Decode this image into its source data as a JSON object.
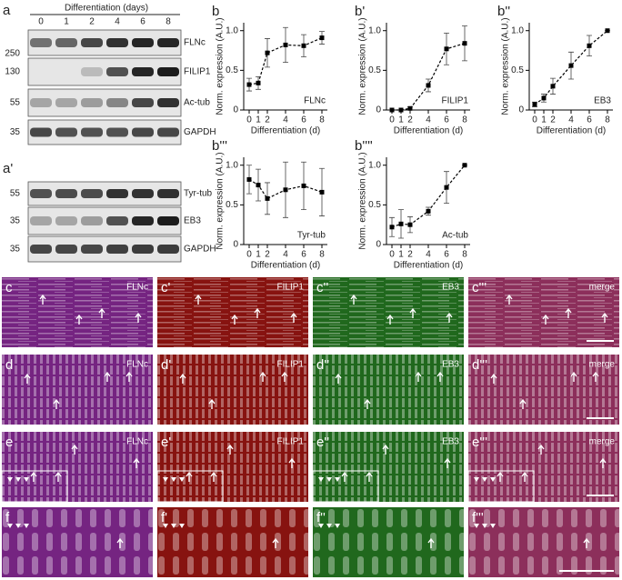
{
  "blots": [
    {
      "label": "a",
      "title": "Differentiation (days)",
      "lanes": [
        "0",
        "1",
        "2",
        "4",
        "6",
        "8"
      ],
      "rows": [
        {
          "marker": "250",
          "name": "FLNc"
        },
        {
          "marker": "130",
          "name": "FILIP1"
        },
        {
          "marker": "55",
          "name": "Ac-tub"
        },
        {
          "marker": "35",
          "name": "GAPDH"
        }
      ]
    },
    {
      "label": "a'",
      "rows": [
        {
          "marker": "55",
          "name": "Tyr-tub"
        },
        {
          "marker": "35",
          "name": "EB3"
        },
        {
          "marker": "35",
          "name": "GAPDH"
        }
      ]
    }
  ],
  "chart_data": [
    {
      "type": "line",
      "panel": "b",
      "annotation": "FLNc",
      "x": [
        0,
        1,
        2,
        4,
        6,
        8
      ],
      "values": [
        0.32,
        0.34,
        0.72,
        0.82,
        0.81,
        0.91
      ],
      "errors": [
        0.08,
        0.08,
        0.18,
        0.22,
        0.14,
        0.08
      ],
      "color": "#000000",
      "xlim": [
        -0.6,
        8.6
      ],
      "ylim": [
        0,
        1.1
      ],
      "xticks": [
        0,
        1,
        2,
        4,
        6,
        8
      ],
      "yticks": [
        0,
        0.5,
        {
          "value": 1,
          "label": "1.0"
        }
      ],
      "xlabel": "Differentiation (d)",
      "ylabel": "Norm. expression (A.U.)"
    },
    {
      "type": "line",
      "panel": "b'",
      "annotation": "FILIP1",
      "x": [
        0,
        1,
        2,
        4,
        6,
        8
      ],
      "values": [
        0,
        0,
        0.02,
        0.31,
        0.77,
        0.84
      ],
      "errors": [
        0,
        0,
        0.02,
        0.08,
        0.2,
        0.22
      ],
      "color": "#000000",
      "xlim": [
        -0.6,
        8.6
      ],
      "ylim": [
        0,
        1.1
      ],
      "xticks": [
        0,
        1,
        2,
        4,
        6,
        8
      ],
      "yticks": [
        0,
        0.5,
        {
          "value": 1,
          "label": "1.0"
        }
      ],
      "xlabel": "Differentiation (d)",
      "ylabel": "Norm. expression (A.U.)"
    },
    {
      "type": "line",
      "panel": "b''",
      "annotation": "EB3",
      "x": [
        0,
        1,
        2,
        4,
        6,
        8
      ],
      "values": [
        0.07,
        0.15,
        0.3,
        0.56,
        0.81,
        1.0
      ],
      "errors": [
        0.03,
        0.05,
        0.1,
        0.17,
        0.13,
        0
      ],
      "color": "#000000",
      "xlim": [
        -0.6,
        8.6
      ],
      "ylim": [
        0,
        1.1
      ],
      "xticks": [
        0,
        1,
        2,
        4,
        6,
        8
      ],
      "yticks": [
        0,
        0.5,
        {
          "value": 1,
          "label": "1.0"
        }
      ],
      "xlabel": "Differentiation (d)",
      "ylabel": "Norm. expression (A.U.)"
    },
    {
      "type": "line",
      "panel": "b'''",
      "annotation": "Tyr-tub",
      "x": [
        0,
        1,
        2,
        4,
        6,
        8
      ],
      "values": [
        0.82,
        0.75,
        0.58,
        0.69,
        0.74,
        0.66
      ],
      "errors": [
        0.18,
        0.2,
        0.2,
        0.35,
        0.3,
        0.3
      ],
      "color": "#000000",
      "xlim": [
        -0.6,
        8.6
      ],
      "ylim": [
        0,
        1.1
      ],
      "xticks": [
        0,
        1,
        2,
        4,
        6,
        8
      ],
      "yticks": [
        0,
        0.5,
        {
          "value": 1,
          "label": "1.0"
        }
      ],
      "xlabel": "Differentiation (d)",
      "ylabel": "Norm. expression (A.U.)"
    },
    {
      "type": "line",
      "panel": "b''''",
      "annotation": "Ac-tub",
      "x": [
        0,
        1,
        2,
        4,
        6,
        8
      ],
      "values": [
        0.22,
        0.26,
        0.25,
        0.42,
        0.72,
        1.0
      ],
      "errors": [
        0.12,
        0.18,
        0.1,
        0.05,
        0.2,
        0
      ],
      "color": "#000000",
      "xlim": [
        -0.6,
        8.6
      ],
      "ylim": [
        0,
        1.1
      ],
      "xticks": [
        0,
        1,
        2,
        4,
        6,
        8
      ],
      "yticks": [
        0,
        0.5,
        {
          "value": 1,
          "label": "1.0"
        }
      ],
      "xlabel": "Differentiation (d)",
      "ylabel": "Norm. expression (A.U.)"
    }
  ],
  "micrographs": {
    "rows": [
      {
        "panels": [
          {
            "label": "c",
            "channel": "FLNc"
          },
          {
            "label": "c'",
            "channel": "FILIP1"
          },
          {
            "label": "c''",
            "channel": "EB3"
          },
          {
            "label": "c'''",
            "channel": "merge"
          }
        ]
      },
      {
        "panels": [
          {
            "label": "d",
            "channel": "FLNc"
          },
          {
            "label": "d'",
            "channel": "FILIP1"
          },
          {
            "label": "d''",
            "channel": "EB3"
          },
          {
            "label": "d'''",
            "channel": "merge"
          }
        ]
      },
      {
        "panels": [
          {
            "label": "e",
            "channel": "FLNc"
          },
          {
            "label": "e'",
            "channel": "FILIP1"
          },
          {
            "label": "e''",
            "channel": "EB3"
          },
          {
            "label": "e'''",
            "channel": "merge"
          }
        ]
      },
      {
        "panels": [
          {
            "label": "f"
          },
          {
            "label": "f'"
          },
          {
            "label": "f''"
          },
          {
            "label": "f'''"
          }
        ]
      }
    ]
  }
}
